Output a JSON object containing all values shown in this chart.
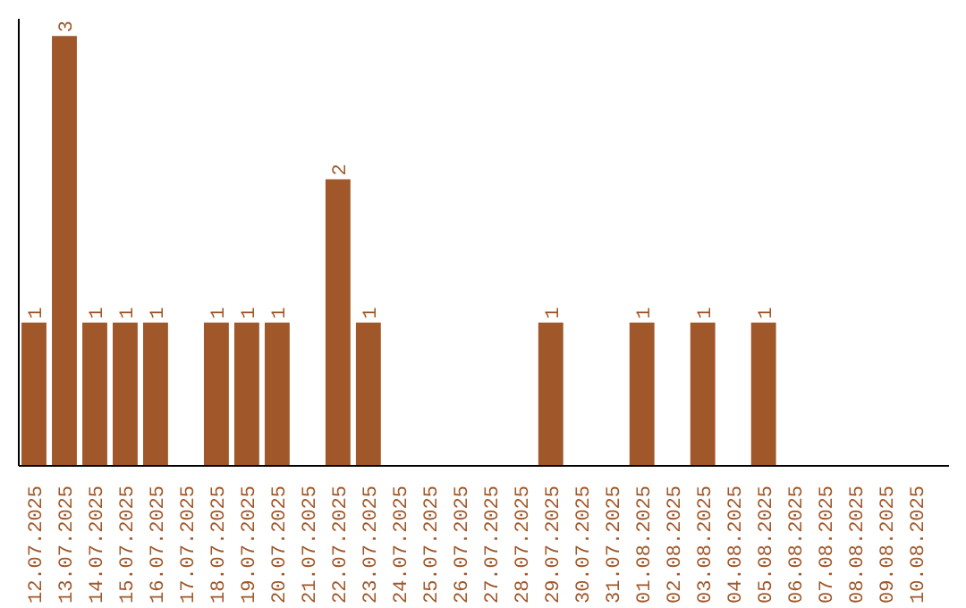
{
  "chart_data": {
    "type": "bar",
    "categories": [
      "12.07.2025",
      "13.07.2025",
      "14.07.2025",
      "15.07.2025",
      "16.07.2025",
      "17.07.2025",
      "18.07.2025",
      "19.07.2025",
      "20.07.2025",
      "21.07.2025",
      "22.07.2025",
      "23.07.2025",
      "24.07.2025",
      "25.07.2025",
      "26.07.2025",
      "27.07.2025",
      "28.07.2025",
      "29.07.2025",
      "30.07.2025",
      "31.07.2025",
      "01.08.2025",
      "02.08.2025",
      "03.08.2025",
      "04.08.2025",
      "05.08.2025",
      "06.08.2025",
      "07.08.2025",
      "08.08.2025",
      "09.08.2025",
      "10.08.2025"
    ],
    "values": [
      1,
      3,
      1,
      1,
      1,
      0,
      1,
      1,
      1,
      0,
      2,
      1,
      0,
      0,
      0,
      0,
      0,
      1,
      0,
      0,
      1,
      0,
      1,
      0,
      1,
      0,
      0,
      0,
      0,
      0
    ],
    "value_labels": [
      "1",
      "3",
      "1",
      "1",
      "1",
      null,
      "1",
      "1",
      "1",
      null,
      "2",
      "1",
      null,
      null,
      null,
      null,
      null,
      "1",
      null,
      null,
      "1",
      null,
      "1",
      null,
      "1",
      null,
      null,
      null,
      null,
      null
    ],
    "color": "#a0582a"
  }
}
